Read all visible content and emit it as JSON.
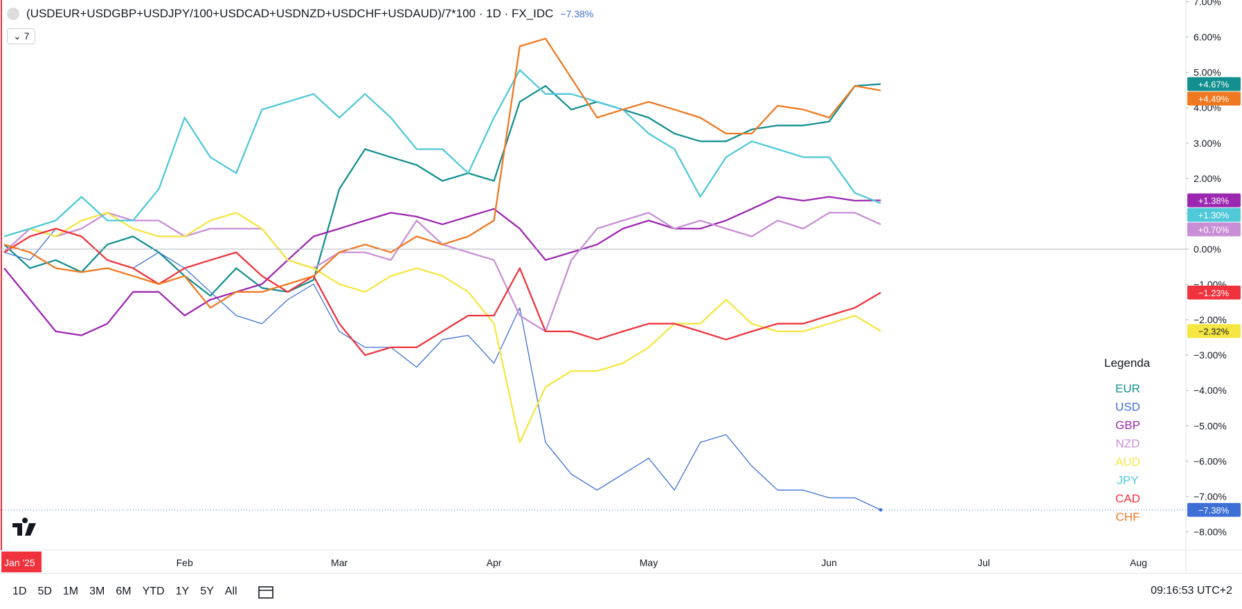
{
  "header": {
    "symbol": "(USDEUR+USDGBP+USDJPY/100+USDCAD+USDNZD+USDCHF+USDAUD)/7*100 · 1D · FX_IDC",
    "change": "−7.38%",
    "indicators_count": "7"
  },
  "chart_data": {
    "type": "line",
    "categories": [
      "Jan '25",
      null,
      null,
      null,
      null,
      null,
      null,
      "Feb",
      null,
      null,
      null,
      null,
      null,
      "Mar",
      null,
      null,
      null,
      null,
      null,
      "Apr",
      null,
      null,
      null,
      null,
      null,
      "May",
      null,
      null,
      null,
      null,
      null,
      null,
      "Jun",
      null,
      null,
      null,
      null,
      null,
      "Jul",
      null,
      null,
      null,
      null,
      null,
      "Aug",
      null
    ],
    "ylim": [
      -8.52,
      7.05
    ],
    "yticks": [
      {
        "value": -8,
        "label": "−8.00%"
      },
      {
        "value": -7,
        "label": "−7.00%"
      },
      {
        "value": -6,
        "label": "−6.00%"
      },
      {
        "value": -5,
        "label": "−5.00%"
      },
      {
        "value": -4,
        "label": "−4.00%"
      },
      {
        "value": -3,
        "label": "−3.00%"
      },
      {
        "value": -2,
        "label": "−2.00%"
      },
      {
        "value": -1,
        "label": "−1.00%"
      },
      {
        "value": 0,
        "label": "0.00%"
      },
      {
        "value": 1,
        "label": "1.00%"
      },
      {
        "value": 2,
        "label": "2.00%"
      },
      {
        "value": 3,
        "label": "3.00%"
      },
      {
        "value": 4,
        "label": "4.00%"
      },
      {
        "value": 5,
        "label": "5.00%"
      },
      {
        "value": 6,
        "label": "6.00%"
      },
      {
        "value": 7,
        "label": "7.00%"
      }
    ],
    "legend_title": "Legenda",
    "series": [
      {
        "name": "EUR",
        "color": "#138f8f",
        "last_label": "+4.67%",
        "values": [
          0.13,
          -0.54,
          -0.31,
          -0.65,
          0.13,
          0.36,
          -0.09,
          -0.76,
          -1.32,
          -0.54,
          -1.1,
          -1.21,
          -0.87,
          1.7,
          2.83,
          2.6,
          2.38,
          1.93,
          2.15,
          1.93,
          4.17,
          4.62,
          3.95,
          4.17,
          3.95,
          3.72,
          3.27,
          3.05,
          3.05,
          3.39,
          3.5,
          3.5,
          3.61,
          4.62,
          4.67,
          null,
          null,
          null,
          null,
          null,
          null,
          null,
          null,
          null,
          null,
          null
        ]
      },
      {
        "name": "USD",
        "color": "#3d6fd6",
        "last_label": "−7.38%",
        "values": [
          -0.09,
          -0.31,
          0.58,
          0.36,
          -0.31,
          -0.54,
          -0.09,
          -0.54,
          -1.21,
          -1.88,
          -2.11,
          -1.43,
          -0.99,
          -2.33,
          -2.78,
          -2.78,
          -3.34,
          -2.56,
          -2.44,
          -3.23,
          -1.66,
          -5.47,
          -6.37,
          -6.82,
          -6.37,
          -5.92,
          -6.82,
          -5.47,
          -5.25,
          -6.14,
          -6.82,
          -6.82,
          -7.04,
          -7.04,
          -7.38,
          null,
          null,
          null,
          null,
          null,
          null,
          null,
          null,
          null,
          null,
          null
        ]
      },
      {
        "name": "GBP",
        "color": "#9c27b0",
        "last_label": "+1.38%",
        "values": [
          -0.54,
          -1.43,
          -2.33,
          -2.44,
          -2.11,
          -1.21,
          -1.21,
          -1.88,
          -1.43,
          -1.21,
          -0.99,
          -0.31,
          0.36,
          0.58,
          0.81,
          1.03,
          0.92,
          0.7,
          0.92,
          1.14,
          0.58,
          -0.31,
          -0.09,
          0.13,
          0.58,
          0.81,
          0.58,
          0.58,
          0.81,
          1.14,
          1.48,
          1.37,
          1.48,
          1.37,
          1.38,
          null,
          null,
          null,
          null,
          null,
          null,
          null,
          null,
          null,
          null,
          null
        ]
      },
      {
        "name": "NZD",
        "color": "#c98fd6",
        "last_label": "+0.70%",
        "values": [
          -0.09,
          0.58,
          0.36,
          0.58,
          1.03,
          0.81,
          0.81,
          0.36,
          0.58,
          0.58,
          0.58,
          -0.31,
          -0.54,
          -0.09,
          -0.09,
          -0.31,
          0.81,
          0.13,
          -0.09,
          -0.31,
          -1.88,
          -2.33,
          -0.31,
          0.58,
          0.81,
          1.03,
          0.58,
          0.81,
          0.58,
          0.36,
          0.81,
          0.58,
          1.03,
          1.03,
          0.7,
          null,
          null,
          null,
          null,
          null,
          null,
          null,
          null,
          null,
          null,
          null
        ]
      },
      {
        "name": "AUD",
        "color": "#f5e642",
        "last_label": "−2.32%",
        "values": [
          0.36,
          0.58,
          0.36,
          0.81,
          1.03,
          0.58,
          0.36,
          0.36,
          0.81,
          1.03,
          0.58,
          -0.31,
          -0.54,
          -0.99,
          -1.21,
          -0.76,
          -0.54,
          -0.76,
          -1.21,
          -2.11,
          -5.47,
          -3.9,
          -3.45,
          -3.45,
          -3.23,
          -2.78,
          -2.11,
          -2.11,
          -1.43,
          -2.11,
          -2.33,
          -2.33,
          -2.11,
          -1.88,
          -2.32,
          null,
          null,
          null,
          null,
          null,
          null,
          null,
          null,
          null,
          null,
          null
        ]
      },
      {
        "name": "JPY",
        "color": "#4fc8d8",
        "last_label": "+1.30%",
        "values": [
          0.36,
          0.58,
          0.81,
          1.48,
          0.81,
          0.81,
          1.7,
          3.72,
          2.6,
          2.15,
          3.95,
          4.17,
          4.39,
          3.72,
          4.39,
          3.72,
          2.83,
          2.83,
          2.15,
          3.72,
          5.07,
          4.39,
          4.39,
          4.17,
          3.95,
          3.27,
          2.83,
          1.48,
          2.6,
          3.05,
          2.83,
          2.6,
          2.6,
          1.59,
          1.3,
          null,
          null,
          null,
          null,
          null,
          null,
          null,
          null,
          null,
          null,
          null
        ]
      },
      {
        "name": "CAD",
        "color": "#f0323c",
        "last_label": "−1.23%",
        "values": [
          -0.09,
          0.36,
          0.58,
          0.36,
          -0.31,
          -0.54,
          -0.99,
          -0.54,
          -0.31,
          -0.09,
          -0.76,
          -1.21,
          -0.76,
          -2.11,
          -3.0,
          -2.78,
          -2.78,
          -2.33,
          -1.88,
          -1.88,
          -0.54,
          -2.33,
          -2.33,
          -2.56,
          -2.33,
          -2.11,
          -2.11,
          -2.33,
          -2.56,
          -2.33,
          -2.11,
          -2.11,
          -1.88,
          -1.66,
          -1.23,
          null,
          null,
          null,
          null,
          null,
          null,
          null,
          null,
          null,
          null,
          null
        ]
      },
      {
        "name": "CHF",
        "color": "#f07820",
        "last_label": "+4.49%",
        "values": [
          0.13,
          -0.09,
          -0.54,
          -0.65,
          -0.54,
          -0.76,
          -0.99,
          -0.76,
          -1.66,
          -1.21,
          -1.21,
          -0.99,
          -0.76,
          -0.09,
          0.13,
          -0.09,
          0.36,
          0.13,
          0.36,
          0.81,
          5.74,
          5.96,
          4.84,
          3.72,
          3.95,
          4.17,
          3.95,
          3.72,
          3.27,
          3.27,
          4.06,
          3.95,
          3.72,
          4.62,
          4.49,
          null,
          null,
          null,
          null,
          null,
          null,
          null,
          null,
          null,
          null,
          null
        ]
      }
    ]
  },
  "toolbar": {
    "ranges": [
      "1D",
      "5D",
      "1M",
      "3M",
      "6M",
      "YTD",
      "1Y",
      "5Y",
      "All"
    ],
    "clock": "09:16:53 UTC+2"
  }
}
